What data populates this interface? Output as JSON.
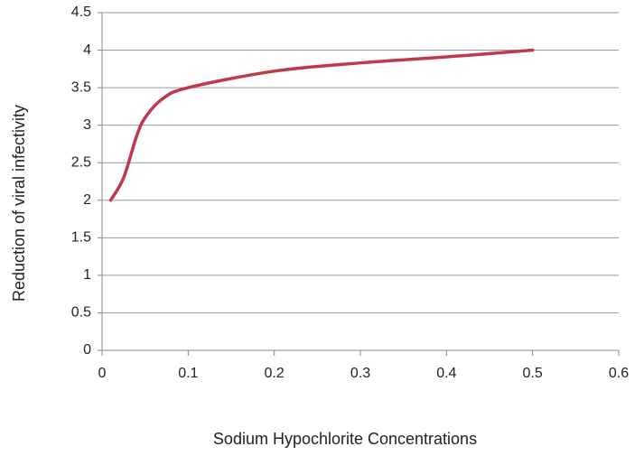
{
  "chart_data": {
    "type": "line",
    "x_label": "Sodium Hypochlorite Concentrations",
    "y_label": "Reduction of viral infectivity",
    "series": [
      {
        "name": "Reduction",
        "color": "#c0394b",
        "x": [
          0.01,
          0.025,
          0.04,
          0.05,
          0.07,
          0.1,
          0.2,
          0.3,
          0.4,
          0.5
        ],
        "values": [
          2,
          2.3,
          2.85,
          3.1,
          3.35,
          3.5,
          3.72,
          3.83,
          3.91,
          4.0
        ]
      }
    ],
    "xlim": [
      0,
      0.6
    ],
    "xticks": [
      0,
      0.1,
      0.2,
      0.3,
      0.4,
      0.5,
      0.6
    ],
    "ylim": [
      0,
      4.5
    ],
    "yticks": [
      0,
      0.5,
      1,
      1.5,
      2,
      2.5,
      3,
      3.5,
      4,
      4.5
    ],
    "grid": true
  }
}
